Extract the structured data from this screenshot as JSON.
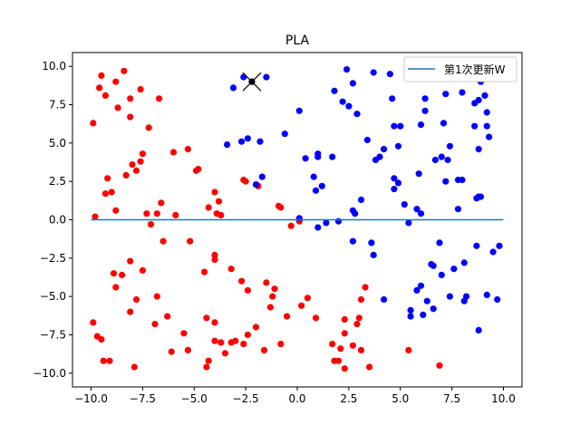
{
  "chart_data": {
    "type": "scatter",
    "title": "PLA",
    "xlabel": "",
    "ylabel": "",
    "xlim": [
      -10.9,
      10.9
    ],
    "ylim": [
      -10.9,
      10.9
    ],
    "xticks": [
      -10.0,
      -7.5,
      -5.0,
      -2.5,
      0.0,
      2.5,
      5.0,
      7.5,
      10.0
    ],
    "yticks": [
      -10.0,
      -7.5,
      -5.0,
      -2.5,
      0.0,
      2.5,
      5.0,
      7.5,
      10.0
    ],
    "xtick_labels": [
      "−10.0",
      "−7.5",
      "−5.0",
      "−2.5",
      "0.0",
      "2.5",
      "5.0",
      "7.5",
      "10.0"
    ],
    "ytick_labels": [
      "−10.0",
      "−7.5",
      "−5.0",
      "−2.5",
      "0.0",
      "2.5",
      "5.0",
      "7.5",
      "10.0"
    ],
    "grid": false,
    "legend_position": "top-right",
    "colors": {
      "red": "#ff0000",
      "blue": "#0000ff",
      "line": "#1f77b4",
      "marker": "#000000"
    },
    "series": [
      {
        "color": "red",
        "points": [
          [
            -9.5,
            9.4
          ],
          [
            -9.6,
            8.6
          ],
          [
            -9.3,
            8.1
          ],
          [
            -8.4,
            9.7
          ],
          [
            -8.8,
            9.0
          ],
          [
            -8.7,
            7.3
          ],
          [
            -8.1,
            7.9
          ],
          [
            -7.6,
            8.5
          ],
          [
            -6.7,
            7.9
          ],
          [
            -8.1,
            6.7
          ],
          [
            -7.2,
            6.0
          ],
          [
            -9.9,
            6.3
          ],
          [
            -7.5,
            4.3
          ],
          [
            -8.0,
            3.6
          ],
          [
            -7.6,
            3.8
          ],
          [
            -7.8,
            3.2
          ],
          [
            -8.3,
            2.9
          ],
          [
            -9.2,
            2.7
          ],
          [
            -9.3,
            1.7
          ],
          [
            -9.0,
            1.8
          ],
          [
            -6.0,
            4.4
          ],
          [
            -5.3,
            4.6
          ],
          [
            -4.8,
            3.3
          ],
          [
            -4.9,
            3.2
          ],
          [
            -2.6,
            2.6
          ],
          [
            -2.5,
            2.5
          ],
          [
            -1.9,
            2.2
          ],
          [
            -4.0,
            1.8
          ],
          [
            -3.8,
            1.2
          ],
          [
            -4.3,
            0.8
          ],
          [
            -3.9,
            0.4
          ],
          [
            -3.7,
            0.3
          ],
          [
            -6.6,
            1.1
          ],
          [
            -7.3,
            0.4
          ],
          [
            -6.8,
            0.4
          ],
          [
            -7.1,
            -0.3
          ],
          [
            -5.9,
            0.3
          ],
          [
            -8.8,
            0.6
          ],
          [
            -9.8,
            0.2
          ],
          [
            -6.5,
            -1.4
          ],
          [
            -5.2,
            -1.4
          ],
          [
            -4.0,
            -2.3
          ],
          [
            -4.0,
            -2.6
          ],
          [
            -3.2,
            -3.2
          ],
          [
            -4.5,
            -3.4
          ],
          [
            -2.7,
            -4.0
          ],
          [
            -1.5,
            -4.1
          ],
          [
            -1.1,
            -4.5
          ],
          [
            -2.4,
            -4.6
          ],
          [
            -1.2,
            -5.0
          ],
          [
            -1.3,
            -5.7
          ],
          [
            -0.5,
            -6.3
          ],
          [
            -2.0,
            -7.0
          ],
          [
            -2.4,
            -7.5
          ],
          [
            -3.0,
            -7.9
          ],
          [
            -3.2,
            -8.0
          ],
          [
            -3.7,
            -8.0
          ],
          [
            -4.0,
            -7.9
          ],
          [
            -3.5,
            -8.7
          ],
          [
            -4.3,
            -9.2
          ],
          [
            -4.4,
            -9.6
          ],
          [
            -1.6,
            -8.5
          ],
          [
            -0.8,
            -8.1
          ],
          [
            -2.6,
            -8.1
          ],
          [
            -4.4,
            -6.4
          ],
          [
            -4.0,
            -6.7
          ],
          [
            -6.3,
            -6.3
          ],
          [
            -6.8,
            -5.0
          ],
          [
            -6.9,
            -6.8
          ],
          [
            -5.5,
            -7.4
          ],
          [
            -6.1,
            -8.6
          ],
          [
            -5.3,
            -8.5
          ],
          [
            -7.8,
            -5.2
          ],
          [
            -8.1,
            -6.0
          ],
          [
            -8.1,
            -2.7
          ],
          [
            -7.5,
            -3.3
          ],
          [
            -8.9,
            -3.5
          ],
          [
            -8.5,
            -3.6
          ],
          [
            -8.8,
            -4.4
          ],
          [
            -9.9,
            -6.7
          ],
          [
            -9.7,
            -7.6
          ],
          [
            -9.5,
            -7.8
          ],
          [
            -9.4,
            -9.2
          ],
          [
            -9.1,
            -9.2
          ],
          [
            -7.9,
            -9.6
          ],
          [
            -0.3,
            -0.4
          ],
          [
            0.1,
            -0.1
          ],
          [
            -0.9,
            0.9
          ],
          [
            -0.8,
            0.8
          ],
          [
            0.5,
            -5.1
          ],
          [
            0.2,
            -5.6
          ],
          [
            0.9,
            -6.4
          ],
          [
            1.7,
            -8.1
          ],
          [
            2.1,
            -8.4
          ],
          [
            1.8,
            -9.2
          ],
          [
            2.0,
            -9.2
          ],
          [
            2.3,
            -9.7
          ],
          [
            2.3,
            -6.5
          ],
          [
            2.3,
            -7.4
          ],
          [
            2.9,
            -6.8
          ],
          [
            3.0,
            -6.4
          ],
          [
            2.7,
            -8.2
          ],
          [
            3.1,
            -8.5
          ],
          [
            3.5,
            -9.6
          ],
          [
            3.1,
            -5.2
          ],
          [
            3.3,
            -4.4
          ],
          [
            5.4,
            -8.5
          ],
          [
            6.9,
            -9.5
          ]
        ]
      },
      {
        "color": "blue",
        "points": [
          [
            -2.6,
            9.3
          ],
          [
            -1.5,
            9.3
          ],
          [
            -3.1,
            8.6
          ],
          [
            -2.7,
            5.1
          ],
          [
            -2.4,
            5.3
          ],
          [
            -3.4,
            4.9
          ],
          [
            -1.8,
            5.1
          ],
          [
            -0.6,
            5.6
          ],
          [
            0.1,
            7.1
          ],
          [
            2.4,
            9.8
          ],
          [
            3.7,
            9.6
          ],
          [
            2.7,
            8.9
          ],
          [
            1.8,
            8.4
          ],
          [
            2.2,
            7.7
          ],
          [
            2.5,
            7.4
          ],
          [
            2.9,
            6.9
          ],
          [
            4.6,
            7.9
          ],
          [
            4.5,
            9.5
          ],
          [
            4.7,
            6.1
          ],
          [
            5.0,
            6.1
          ],
          [
            6.2,
            7.9
          ],
          [
            6.2,
            7.1
          ],
          [
            7.2,
            8.2
          ],
          [
            8.0,
            8.3
          ],
          [
            8.6,
            7.6
          ],
          [
            8.8,
            7.8
          ],
          [
            9.1,
            8.1
          ],
          [
            9.2,
            7.0
          ],
          [
            8.6,
            6.1
          ],
          [
            9.2,
            6.1
          ],
          [
            9.3,
            5.4
          ],
          [
            8.8,
            4.6
          ],
          [
            8.9,
            9.0
          ],
          [
            6.0,
            6.2
          ],
          [
            7.1,
            6.3
          ],
          [
            3.4,
            5.2
          ],
          [
            4.2,
            4.6
          ],
          [
            4.0,
            4.1
          ],
          [
            3.8,
            3.9
          ],
          [
            4.9,
            4.8
          ],
          [
            6.7,
            3.9
          ],
          [
            7.0,
            4.1
          ],
          [
            7.3,
            3.9
          ],
          [
            7.4,
            4.8
          ],
          [
            7.2,
            2.5
          ],
          [
            7.8,
            2.6
          ],
          [
            8.0,
            2.6
          ],
          [
            5.9,
            3.0
          ],
          [
            7.8,
            0.7
          ],
          [
            8.7,
            1.4
          ],
          [
            8.8,
            1.5
          ],
          [
            8.9,
            1.5
          ],
          [
            4.7,
            2.7
          ],
          [
            4.7,
            2.0
          ],
          [
            4.9,
            2.4
          ],
          [
            5.2,
            1.0
          ],
          [
            5.8,
            0.7
          ],
          [
            6.0,
            0.4
          ],
          [
            5.4,
            -0.2
          ],
          [
            3.1,
            1.3
          ],
          [
            2.7,
            0.6
          ],
          [
            2.8,
            0.4
          ],
          [
            2.0,
            -0.1
          ],
          [
            1.4,
            -0.2
          ],
          [
            1.0,
            -0.5
          ],
          [
            0.9,
            1.9
          ],
          [
            0.8,
            2.8
          ],
          [
            1.2,
            2.2
          ],
          [
            1.0,
            4.1
          ],
          [
            1.0,
            4.3
          ],
          [
            1.7,
            4.1
          ],
          [
            0.4,
            4.0
          ],
          [
            -1.7,
            2.8
          ],
          [
            -2.0,
            2.3
          ],
          [
            0.1,
            0.1
          ],
          [
            2.7,
            -1.4
          ],
          [
            3.6,
            -1.5
          ],
          [
            3.7,
            -2.3
          ],
          [
            6.9,
            -1.5
          ],
          [
            8.7,
            -1.7
          ],
          [
            9.5,
            -2.1
          ],
          [
            9.8,
            -1.7
          ],
          [
            8.1,
            -2.8
          ],
          [
            7.6,
            -3.2
          ],
          [
            6.5,
            -2.9
          ],
          [
            6.6,
            -3.0
          ],
          [
            7.0,
            -3.6
          ],
          [
            5.8,
            -4.6
          ],
          [
            6.0,
            -4.3
          ],
          [
            6.3,
            -5.3
          ],
          [
            7.4,
            -5.0
          ],
          [
            8.2,
            -5.0
          ],
          [
            9.2,
            -4.9
          ],
          [
            9.7,
            -5.2
          ],
          [
            8.1,
            -5.3
          ],
          [
            6.6,
            -5.8
          ],
          [
            5.5,
            -5.9
          ],
          [
            5.5,
            -6.3
          ],
          [
            6.1,
            -6.2
          ],
          [
            4.2,
            -5.2
          ],
          [
            8.8,
            -7.2
          ]
        ]
      }
    ],
    "line": {
      "name": "第1次更新W",
      "x": [
        -10,
        10
      ],
      "y": [
        0,
        0
      ]
    },
    "marker": {
      "type": "x",
      "x": [
        -2.2
      ],
      "y": [
        9.0
      ]
    }
  }
}
